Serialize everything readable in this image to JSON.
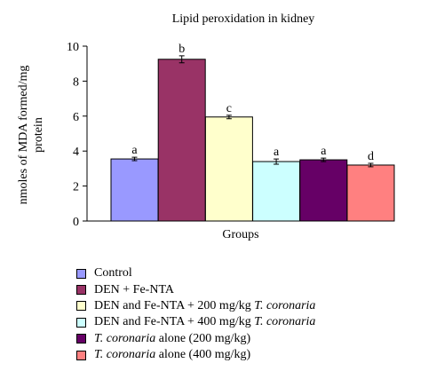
{
  "chart_data": {
    "type": "bar",
    "title": "Lipid peroxidation in kidney",
    "xlabel": "Groups",
    "ylabel_lines": [
      "nmoles of MDA formed/mg",
      "protein"
    ],
    "ylim": [
      0,
      10
    ],
    "yticks": [
      "0",
      "2",
      "4",
      "6",
      "8",
      "10"
    ],
    "grid": false,
    "legend_position": "bottom",
    "categories": [
      "Control",
      "DEN + Fe-NTA",
      "DEN and Fe-NTA + 200 mg/kg T. coronaria",
      "DEN and Fe-NTA + 400 mg/kg T. coronaria",
      "T. coronaria alone (200 mg/kg)",
      "T. coronaria alone (400 mg/kg)"
    ],
    "values": [
      3.55,
      9.25,
      5.95,
      3.4,
      3.5,
      3.2
    ],
    "errors": [
      0.1,
      0.2,
      0.1,
      0.15,
      0.1,
      0.1
    ],
    "significance_letters": [
      "a",
      "b",
      "c",
      "a",
      "a",
      "d"
    ],
    "colors": [
      "#9999ff",
      "#993366",
      "#ffffcc",
      "#ccffff",
      "#660066",
      "#ff8080"
    ]
  },
  "legend": [
    {
      "prefix": "Control",
      "italic": "",
      "suffix": ""
    },
    {
      "prefix": "DEN + Fe-NTA",
      "italic": "",
      "suffix": ""
    },
    {
      "prefix": "DEN and Fe-NTA + 200 mg/kg ",
      "italic": "T. coronaria",
      "suffix": ""
    },
    {
      "prefix": "DEN and Fe-NTA + 400 mg/kg ",
      "italic": "T. coronaria",
      "suffix": ""
    },
    {
      "prefix": "",
      "italic": "T. coronaria",
      "suffix": " alone (200 mg/kg)"
    },
    {
      "prefix": "",
      "italic": "T. coronaria",
      "suffix": " alone (400 mg/kg)"
    }
  ]
}
